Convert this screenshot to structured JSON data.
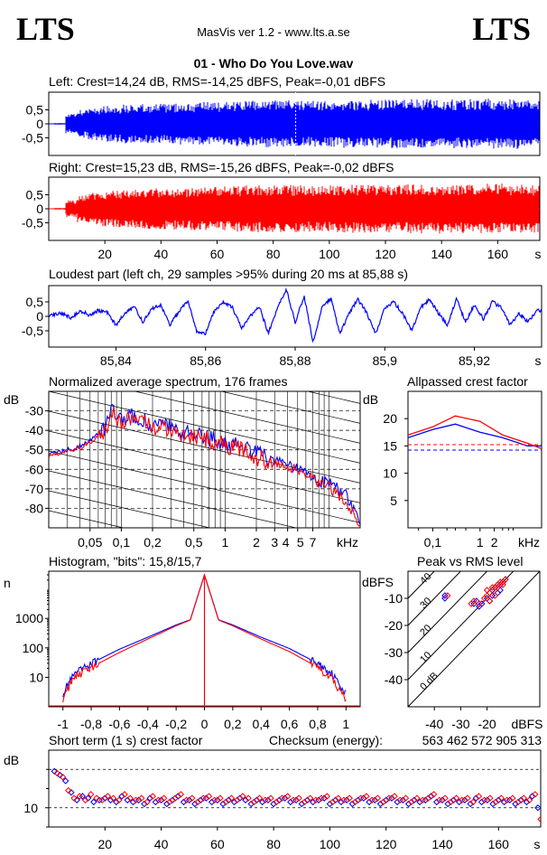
{
  "header": {
    "logo_left": "LTS",
    "logo_right": "LTS",
    "app_title": "MasVis ver 1.2 - www.lts.a.se",
    "file_title": "01 - Who Do You Love.wav"
  },
  "colors": {
    "left": "#0000ff",
    "right": "#ff0000",
    "axis": "#000000"
  },
  "chart_data": [
    {
      "id": "left-waveform",
      "type": "area",
      "title": "Left: Crest=14,24 dB, RMS=-14,25 dBFS, Peak=-0,01 dBFS",
      "ylim": [
        -1,
        1
      ],
      "yticks": [
        "0,5",
        "0",
        "-0,5"
      ],
      "xlim": [
        0,
        175
      ],
      "marker_x": 88,
      "series": [
        {
          "values": [
            0.03,
            0.35,
            0.5,
            0.6,
            0.65,
            0.66,
            0.7,
            0.7,
            0.72,
            0.72,
            0.73,
            0.75,
            0.75,
            0.78,
            0.78,
            0.8,
            0.82,
            0.82,
            0.84,
            0.85,
            0.85,
            0.85,
            0.83,
            0.82,
            0.85,
            0.86,
            0.86,
            0.85,
            0.86,
            0.87,
            0.88,
            0.88,
            0.88,
            0.88,
            0.87,
            0.88,
            0.88,
            0.9,
            0.9,
            0.9,
            0.9,
            0.9,
            0.86,
            0.85
          ]
        }
      ]
    },
    {
      "id": "right-waveform",
      "type": "area",
      "title": "Right: Crest=15,23 dB, RMS=-15,26 dBFS, Peak=-0,02 dBFS",
      "ylim": [
        -1,
        1
      ],
      "yticks": [
        "0,5",
        "0",
        "-0,5"
      ],
      "xlim": [
        0,
        175
      ],
      "xticks": [
        "20",
        "40",
        "60",
        "80",
        "100",
        "120",
        "140",
        "160"
      ],
      "xunit": "s",
      "series": [
        {
          "values": [
            0.03,
            0.3,
            0.48,
            0.58,
            0.62,
            0.66,
            0.68,
            0.7,
            0.72,
            0.73,
            0.74,
            0.74,
            0.76,
            0.78,
            0.8,
            0.8,
            0.82,
            0.84,
            0.84,
            0.84,
            0.85,
            0.84,
            0.82,
            0.82,
            0.84,
            0.86,
            0.86,
            0.86,
            0.86,
            0.87,
            0.87,
            0.88,
            0.88,
            0.88,
            0.88,
            0.88,
            0.88,
            0.9,
            0.9,
            0.9,
            0.88,
            0.88,
            0.86,
            0.84
          ]
        }
      ]
    },
    {
      "id": "loudest-part",
      "type": "line",
      "title": "Loudest part (left  ch, 29 samples >95% during 20 ms at 85,88 s)",
      "ylim": [
        -1,
        1
      ],
      "yticks": [
        "0,5",
        "0",
        "-0,5"
      ],
      "xlim": [
        85.825,
        85.935
      ],
      "xticks": [
        "85,84",
        "85,86",
        "85,88",
        "85,9",
        "85,92"
      ],
      "xunit": "s",
      "series": [
        {
          "name": "left",
          "x": [
            85.825,
            85.828,
            85.83,
            85.832,
            85.834,
            85.836,
            85.838,
            85.84,
            85.842,
            85.844,
            85.846,
            85.848,
            85.85,
            85.852,
            85.854,
            85.856,
            85.858,
            85.86,
            85.862,
            85.864,
            85.866,
            85.868,
            85.87,
            85.872,
            85.874,
            85.876,
            85.878,
            85.88,
            85.882,
            85.884,
            85.886,
            85.888,
            85.89,
            85.892,
            85.894,
            85.896,
            85.898,
            85.9,
            85.902,
            85.904,
            85.906,
            85.908,
            85.91,
            85.912,
            85.914,
            85.916,
            85.918,
            85.92,
            85.922,
            85.924,
            85.926,
            85.928,
            85.93,
            85.932,
            85.934
          ],
          "y": [
            0.05,
            0.1,
            -0.05,
            0.2,
            0.05,
            0.2,
            0.15,
            -0.3,
            0.1,
            0.35,
            -0.2,
            0.25,
            0.4,
            -0.3,
            0.15,
            0.55,
            -0.5,
            -0.6,
            0.2,
            0.5,
            0.3,
            -0.4,
            0.0,
            0.35,
            -0.6,
            0.3,
            0.95,
            -0.2,
            0.7,
            -0.9,
            0.35,
            0.6,
            -0.6,
            0.1,
            0.6,
            0.1,
            -0.6,
            0.3,
            0.5,
            0.1,
            -0.5,
            0.3,
            0.6,
            0.1,
            -0.3,
            0.6,
            -0.2,
            0.4,
            -0.1,
            0.5,
            0.3,
            -0.3,
            0.1,
            -0.2,
            0.2
          ]
        }
      ]
    },
    {
      "id": "average-spectrum",
      "type": "line",
      "title": "Normalized average spectrum, 176 frames",
      "ylabel": "dB",
      "xunit": "kHz",
      "ylim": [
        -90,
        -20
      ],
      "xlim": [
        0.02,
        20
      ],
      "xscale": "log",
      "yticks": [
        "-30",
        "-40",
        "-50",
        "-60",
        "-70",
        "-80"
      ],
      "xticks": [
        "0,05",
        "0,1",
        "0,2",
        "0,5",
        "1",
        "2",
        "3",
        "4",
        "5",
        "7"
      ],
      "series": [
        {
          "name": "left",
          "x": [
            0.02,
            0.03,
            0.04,
            0.05,
            0.06,
            0.07,
            0.08,
            0.1,
            0.12,
            0.15,
            0.2,
            0.3,
            0.4,
            0.5,
            0.7,
            1,
            1.5,
            2,
            3,
            4,
            5,
            6,
            7,
            8,
            10,
            12,
            15,
            20
          ],
          "y": [
            -52,
            -50,
            -48,
            -45,
            -42,
            -38,
            -30,
            -36,
            -33,
            -34,
            -37,
            -39,
            -41,
            -42,
            -44,
            -47,
            -49,
            -52,
            -56,
            -58,
            -59,
            -62,
            -64,
            -66,
            -67,
            -70,
            -74,
            -88
          ]
        },
        {
          "name": "right",
          "x": [
            0.02,
            0.03,
            0.04,
            0.05,
            0.06,
            0.07,
            0.08,
            0.1,
            0.12,
            0.15,
            0.2,
            0.3,
            0.4,
            0.5,
            0.7,
            1,
            1.5,
            2,
            3,
            4,
            5,
            6,
            7,
            8,
            10,
            12,
            15,
            20
          ],
          "y": [
            -53,
            -51,
            -49,
            -46,
            -43,
            -40,
            -31,
            -37,
            -34,
            -35,
            -38,
            -40,
            -42,
            -43,
            -45,
            -48,
            -50,
            -54,
            -57,
            -59,
            -60,
            -63,
            -65,
            -67,
            -69,
            -73,
            -78,
            -88
          ]
        }
      ]
    },
    {
      "id": "allpassed-crest",
      "type": "line",
      "title": "Allpassed crest factor",
      "ylabel": "dB",
      "xunit": "kHz",
      "ylim": [
        0,
        25
      ],
      "xlim": [
        0.03,
        20
      ],
      "xscale": "log",
      "yticks": [
        "20",
        "15",
        "10",
        "5"
      ],
      "xticks": [
        "0,1",
        "1",
        "2"
      ],
      "series": [
        {
          "name": "left",
          "x": [
            0.03,
            0.1,
            0.3,
            1,
            3,
            10,
            20
          ],
          "y": [
            16.5,
            18,
            19,
            17.5,
            16.5,
            15,
            15
          ],
          "ref": 14.24
        },
        {
          "name": "right",
          "x": [
            0.03,
            0.1,
            0.3,
            1,
            3,
            10,
            20
          ],
          "y": [
            17,
            18.5,
            20.5,
            19.5,
            17,
            15.5,
            14.5
          ],
          "ref": 15.23
        }
      ]
    },
    {
      "id": "histogram",
      "type": "line",
      "title": "Histogram, \"bits\": 15,8/15,7",
      "ylabel": "n",
      "xlim": [
        -1.1,
        1.1
      ],
      "yscale": "log",
      "ylim": [
        1,
        40000
      ],
      "yticks": [
        "1000",
        "100",
        "10"
      ],
      "xticks": [
        "-1",
        "-0,8",
        "-0,6",
        "-0,4",
        "-0,2",
        "0",
        "0,2",
        "0,4",
        "0,6",
        "0,8",
        "1"
      ],
      "series": [
        {
          "name": "left",
          "x": [
            -1,
            -0.95,
            -0.9,
            -0.8,
            -0.6,
            -0.4,
            -0.2,
            -0.1,
            0,
            0.1,
            0.2,
            0.4,
            0.6,
            0.8,
            0.9,
            0.95,
            1
          ],
          "y": [
            3,
            8,
            15,
            30,
            90,
            230,
            600,
            900,
            30000,
            900,
            600,
            230,
            95,
            30,
            14,
            6,
            3
          ]
        },
        {
          "name": "right",
          "x": [
            -1,
            -0.95,
            -0.9,
            -0.8,
            -0.6,
            -0.4,
            -0.2,
            -0.1,
            0,
            0.1,
            0.2,
            0.4,
            0.6,
            0.8,
            0.9,
            0.95,
            1
          ],
          "y": [
            2,
            6,
            12,
            22,
            70,
            200,
            560,
            880,
            30000,
            880,
            560,
            200,
            75,
            22,
            10,
            4,
            2
          ]
        }
      ]
    },
    {
      "id": "peak-vs-rms",
      "type": "scatter",
      "title": "Peak vs RMS level",
      "xunit": "dBFS",
      "yunit": "dBFS",
      "xlim": [
        -50,
        0
      ],
      "ylim": [
        -50,
        0
      ],
      "xticks": [
        "-40",
        "-30",
        "-20"
      ],
      "yticks": [
        "-10",
        "-20",
        "-30",
        "-40"
      ],
      "diagonal_labels": [
        "40",
        "30",
        "20",
        "10",
        "0 dB"
      ],
      "series": [
        {
          "name": "left",
          "x": [
            -36,
            -36,
            -25,
            -24,
            -23,
            -22,
            -20,
            -19,
            -18,
            -17,
            -16,
            -15,
            -14,
            -13,
            -16,
            -18,
            -19,
            -15
          ],
          "y": [
            -9,
            -10,
            -12,
            -11,
            -13,
            -12,
            -10,
            -8,
            -7,
            -6,
            -5,
            -5,
            -4,
            -3,
            -8,
            -9,
            -11,
            -7
          ]
        },
        {
          "name": "right",
          "x": [
            -35,
            -26,
            -25,
            -23,
            -21,
            -20,
            -19,
            -18,
            -17,
            -16,
            -15,
            -14,
            -13,
            -17,
            -19,
            -20,
            -16,
            -14
          ],
          "y": [
            -9,
            -12,
            -11,
            -12,
            -10,
            -9,
            -8,
            -6,
            -6,
            -5,
            -4,
            -4,
            -3,
            -9,
            -11,
            -7,
            -6,
            -5
          ]
        }
      ]
    },
    {
      "id": "short-term-crest",
      "type": "scatter",
      "title": "Short term (1 s) crest factor",
      "ylabel": "dB",
      "xunit": "s",
      "xlim": [
        0,
        175
      ],
      "ylim": [
        5,
        25
      ],
      "yticks": [
        "10"
      ],
      "xticks": [
        "20",
        "40",
        "60",
        "80",
        "100",
        "120",
        "140",
        "160"
      ],
      "checksum_label": "Checksum (energy):",
      "checksum_value": "563 462 572 905 313",
      "series": [
        {
          "name": "left",
          "x": [
            2,
            4,
            6,
            8,
            10,
            12,
            14,
            16,
            18,
            20,
            22,
            24,
            26,
            28,
            30,
            32,
            34,
            36,
            38,
            40,
            42,
            44,
            46,
            48,
            50,
            52,
            54,
            56,
            58,
            60,
            62,
            64,
            66,
            68,
            70,
            72,
            74,
            76,
            78,
            80,
            82,
            84,
            86,
            88,
            90,
            92,
            94,
            96,
            98,
            100,
            102,
            104,
            106,
            108,
            110,
            112,
            114,
            116,
            118,
            120,
            122,
            124,
            126,
            128,
            130,
            132,
            134,
            136,
            138,
            140,
            142,
            144,
            146,
            148,
            150,
            152,
            154,
            156,
            158,
            160,
            162,
            164,
            166,
            168,
            170,
            172,
            174
          ],
          "y": [
            19.5,
            18.5,
            17,
            14,
            12,
            13,
            12.5,
            11.5,
            12,
            12.5,
            12,
            11.5,
            13,
            12,
            11.5,
            12,
            11,
            12.5,
            11.5,
            12,
            11,
            12,
            13,
            11.5,
            12,
            11,
            12,
            12.5,
            11.5,
            12,
            11,
            12,
            11.5,
            12.5,
            12,
            11,
            12,
            11.5,
            12,
            11,
            12,
            12.5,
            11.5,
            12,
            11,
            12,
            11.5,
            12,
            12.5,
            11,
            12,
            11.5,
            12,
            11,
            12,
            12.5,
            11.5,
            12,
            11,
            12,
            12.5,
            11.5,
            12,
            11,
            12,
            11.5,
            12,
            13,
            11.5,
            12,
            11,
            12,
            11.5,
            12,
            11,
            12.5,
            11.5,
            12,
            11,
            12,
            11.5,
            12,
            11,
            12,
            11.5,
            13,
            10
          ]
        },
        {
          "name": "right",
          "x": [
            3,
            5,
            7,
            9,
            11,
            13,
            15,
            17,
            19,
            21,
            23,
            25,
            27,
            29,
            31,
            33,
            35,
            37,
            39,
            41,
            43,
            45,
            47,
            49,
            51,
            53,
            55,
            57,
            59,
            61,
            63,
            65,
            67,
            69,
            71,
            73,
            75,
            77,
            79,
            81,
            83,
            85,
            87,
            89,
            91,
            93,
            95,
            97,
            99,
            101,
            103,
            105,
            107,
            109,
            111,
            113,
            115,
            117,
            119,
            121,
            123,
            125,
            127,
            129,
            131,
            133,
            135,
            137,
            139,
            141,
            143,
            145,
            147,
            149,
            151,
            153,
            155,
            157,
            159,
            161,
            163,
            165,
            167,
            169,
            171,
            173,
            175
          ],
          "y": [
            19,
            18,
            14.5,
            12.5,
            13,
            12,
            13.5,
            12.5,
            12,
            13,
            12.5,
            12,
            13.5,
            12.5,
            12,
            12.5,
            11.5,
            13,
            12,
            12.5,
            11.5,
            12.5,
            13.5,
            12,
            12.5,
            11.5,
            12.5,
            13,
            12,
            12.5,
            11.5,
            12.5,
            12,
            13,
            12.5,
            11.5,
            12.5,
            12,
            12.5,
            11.5,
            12.5,
            13,
            12,
            12.5,
            11.5,
            12.5,
            12,
            12.5,
            13,
            11.5,
            12.5,
            12,
            12.5,
            11.5,
            12.5,
            13,
            12,
            12.5,
            11.5,
            12.5,
            13,
            12,
            12.5,
            11.5,
            12.5,
            12,
            12.5,
            13.5,
            12,
            12.5,
            11.5,
            12.5,
            12,
            12.5,
            11.5,
            13,
            12,
            12.5,
            11.5,
            12.5,
            12,
            12.5,
            11.5,
            12.5,
            12,
            13.5,
            7
          ]
        }
      ]
    }
  ]
}
